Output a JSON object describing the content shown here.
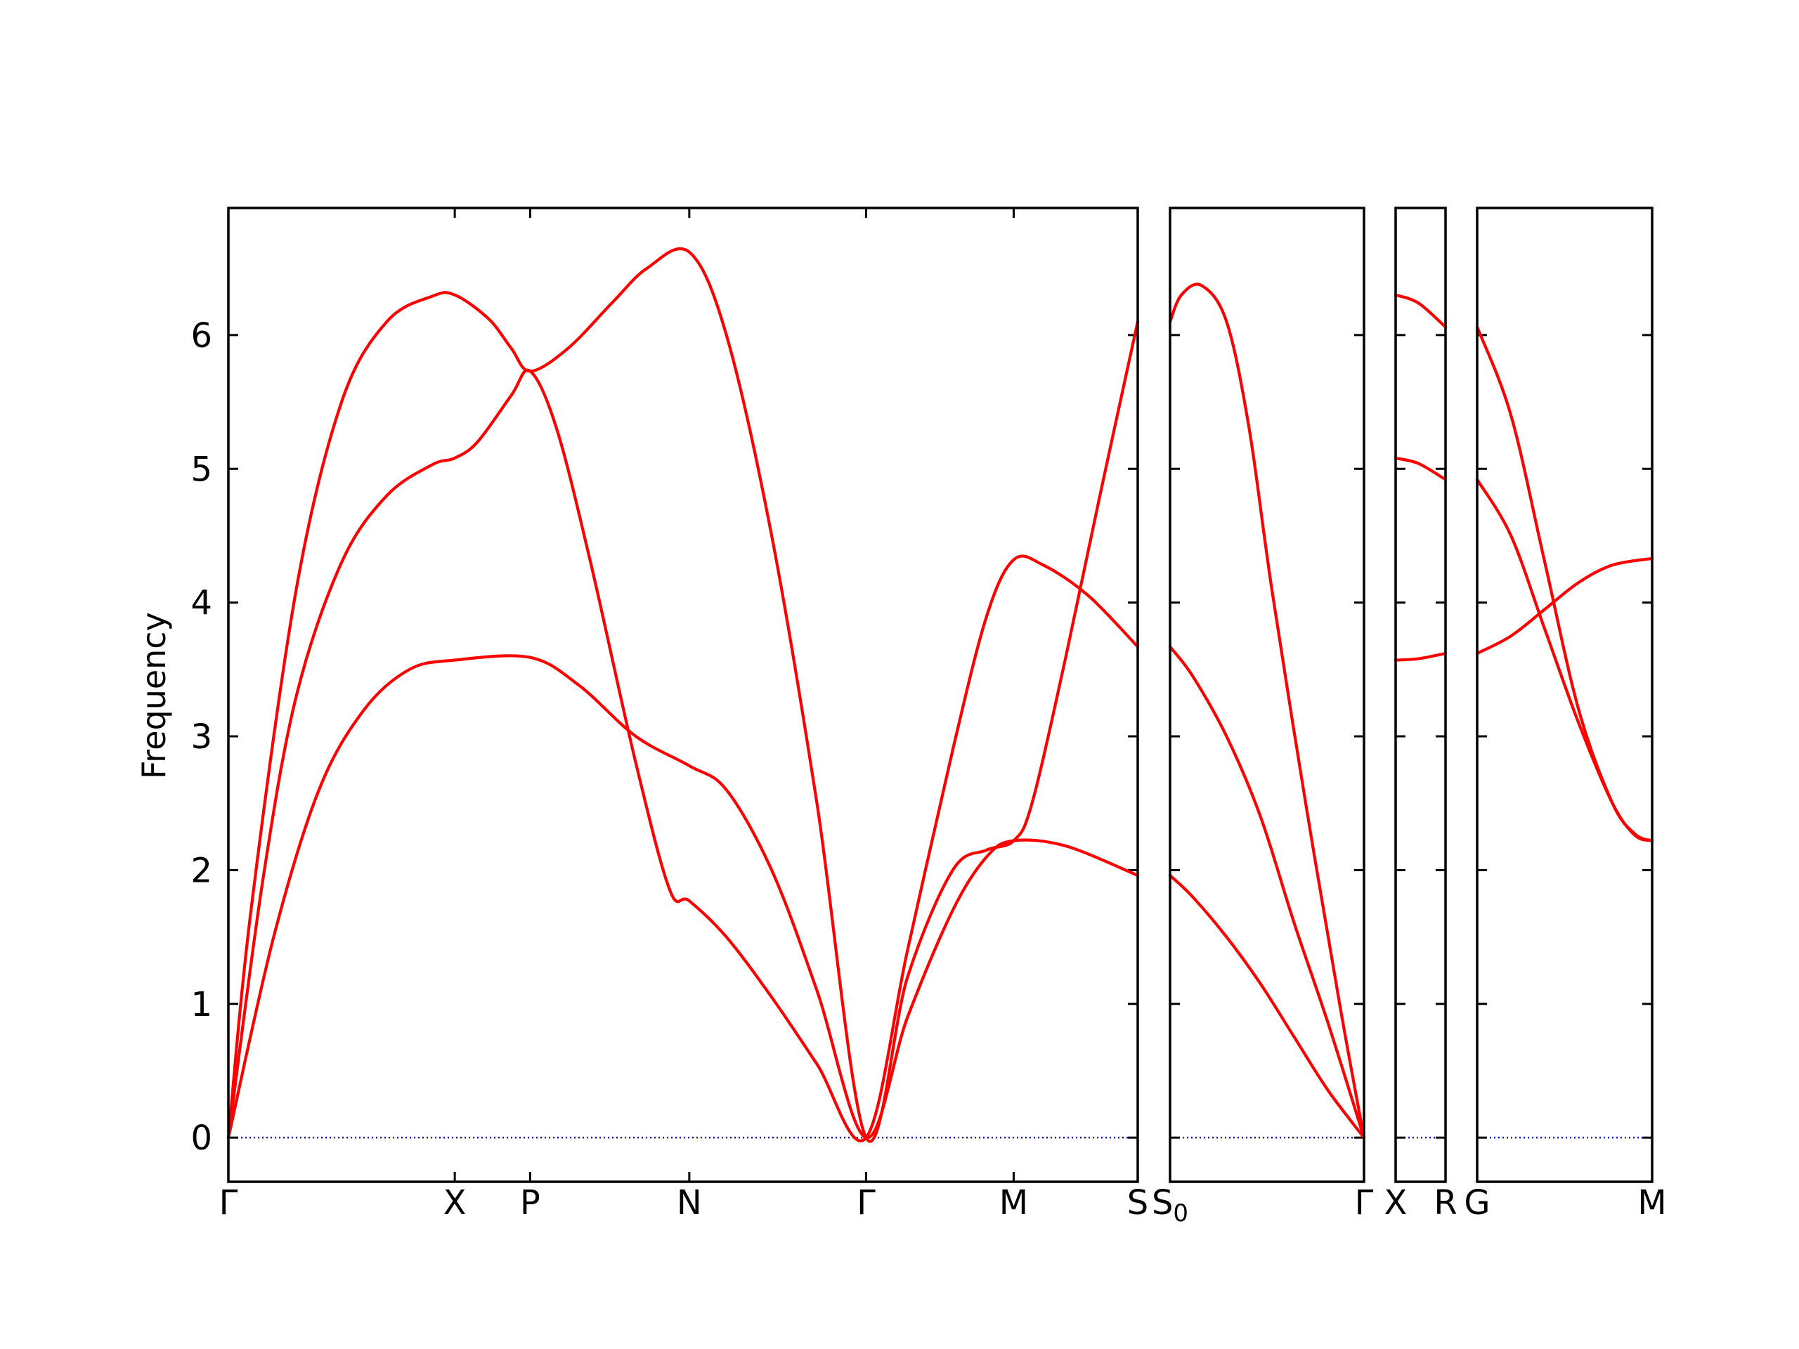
{
  "chart_data": {
    "type": "line",
    "title": "",
    "ylabel": "Frequency",
    "ylim": [
      -0.33,
      6.95
    ],
    "yticks": [
      "0",
      "1",
      "2",
      "3",
      "4",
      "5",
      "6"
    ],
    "grid": false,
    "colors": {
      "bands": "#ff0000",
      "zero_line": "#0000cc",
      "axes": "#000000"
    },
    "panels": [
      {
        "xticks": [
          {
            "label": "Γ",
            "x": 0
          },
          {
            "label": "X",
            "x": 1
          },
          {
            "label": "P",
            "x": 1.333
          },
          {
            "label": "N",
            "x": 2.036
          },
          {
            "label": "Γ",
            "x": 2.817
          },
          {
            "label": "M",
            "x": 3.469
          },
          {
            "label": "S",
            "x": 4.017
          }
        ],
        "bands": [
          {
            "name": "",
            "points": [
              [
                0,
                0
              ],
              [
                0.2,
                1.5
              ],
              [
                0.4,
                2.6
              ],
              [
                0.6,
                3.2
              ],
              [
                0.8,
                3.5
              ],
              [
                1,
                3.57
              ],
              [
                1.333,
                3.59
              ],
              [
                1.55,
                3.38
              ],
              [
                1.8,
                3.0
              ],
              [
                2.036,
                2.78
              ],
              [
                2.2,
                2.6
              ],
              [
                2.4,
                2.0
              ],
              [
                2.6,
                1.1
              ],
              [
                2.817,
                0
              ],
              [
                3.0,
                0.9
              ],
              [
                3.2,
                1.7
              ],
              [
                3.35,
                2.1
              ],
              [
                3.469,
                2.22
              ],
              [
                3.7,
                2.18
              ],
              [
                4.017,
                1.96
              ]
            ]
          },
          {
            "name": "",
            "points": [
              [
                0,
                0
              ],
              [
                0.15,
                1.9
              ],
              [
                0.3,
                3.3
              ],
              [
                0.5,
                4.3
              ],
              [
                0.7,
                4.8
              ],
              [
                0.9,
                5.03
              ],
              [
                1,
                5.08
              ],
              [
                1.1,
                5.2
              ],
              [
                1.25,
                5.55
              ],
              [
                1.333,
                5.73
              ],
              [
                1.45,
                5.3
              ],
              [
                1.6,
                4.3
              ],
              [
                1.8,
                2.8
              ],
              [
                1.95,
                1.85
              ],
              [
                2.036,
                1.77
              ],
              [
                2.2,
                1.5
              ],
              [
                2.4,
                1.05
              ],
              [
                2.6,
                0.55
              ],
              [
                2.817,
                0
              ],
              [
                3.0,
                1.4
              ],
              [
                3.2,
                2.9
              ],
              [
                3.35,
                3.9
              ],
              [
                3.469,
                4.32
              ],
              [
                3.6,
                4.28
              ],
              [
                3.8,
                4.05
              ],
              [
                4.017,
                3.67
              ]
            ]
          },
          {
            "name": "",
            "points": [
              [
                0,
                0
              ],
              [
                0.1,
                1.7
              ],
              [
                0.3,
                4.1
              ],
              [
                0.5,
                5.5
              ],
              [
                0.7,
                6.1
              ],
              [
                0.9,
                6.29
              ],
              [
                1,
                6.3
              ],
              [
                1.15,
                6.12
              ],
              [
                1.25,
                5.9
              ],
              [
                1.333,
                5.73
              ],
              [
                1.5,
                5.9
              ],
              [
                1.7,
                6.25
              ],
              [
                1.85,
                6.5
              ],
              [
                2.036,
                6.62
              ],
              [
                2.2,
                6.0
              ],
              [
                2.4,
                4.5
              ],
              [
                2.6,
                2.5
              ],
              [
                2.817,
                0
              ],
              [
                3.0,
                1.2
              ],
              [
                3.2,
                2.0
              ],
              [
                3.35,
                2.15
              ],
              [
                3.469,
                2.22
              ],
              [
                3.55,
                2.5
              ],
              [
                3.7,
                3.6
              ],
              [
                3.85,
                4.8
              ],
              [
                4.017,
                6.1
              ]
            ]
          }
        ]
      },
      {
        "xticks": [
          {
            "label": "S0",
            "x": 0
          },
          {
            "label": "Γ",
            "x": 0.858
          }
        ],
        "bands": [
          {
            "name": "",
            "points": [
              [
                0,
                1.96
              ],
              [
                0.1,
                1.8
              ],
              [
                0.25,
                1.5
              ],
              [
                0.4,
                1.15
              ],
              [
                0.55,
                0.75
              ],
              [
                0.7,
                0.35
              ],
              [
                0.858,
                0
              ]
            ]
          },
          {
            "name": "",
            "points": [
              [
                0,
                3.67
              ],
              [
                0.1,
                3.45
              ],
              [
                0.25,
                3.0
              ],
              [
                0.4,
                2.4
              ],
              [
                0.55,
                1.6
              ],
              [
                0.7,
                0.85
              ],
              [
                0.858,
                0
              ]
            ]
          },
          {
            "name": "",
            "points": [
              [
                0,
                6.1
              ],
              [
                0.05,
                6.3
              ],
              [
                0.14,
                6.37
              ],
              [
                0.25,
                6.1
              ],
              [
                0.35,
                5.3
              ],
              [
                0.45,
                4.1
              ],
              [
                0.6,
                2.5
              ],
              [
                0.75,
                1.0
              ],
              [
                0.858,
                0
              ]
            ]
          }
        ]
      },
      {
        "xticks": [
          {
            "label": "X",
            "x": 0
          },
          {
            "label": "R",
            "x": 0.22
          }
        ],
        "bands": [
          {
            "name": "",
            "points": [
              [
                0,
                3.57
              ],
              [
                0.1,
                3.58
              ],
              [
                0.22,
                3.62
              ]
            ]
          },
          {
            "name": "",
            "points": [
              [
                0,
                5.08
              ],
              [
                0.1,
                5.04
              ],
              [
                0.22,
                4.92
              ]
            ]
          },
          {
            "name": "",
            "points": [
              [
                0,
                6.3
              ],
              [
                0.1,
                6.24
              ],
              [
                0.22,
                6.06
              ]
            ]
          }
        ]
      },
      {
        "xticks": [
          {
            "label": "G",
            "x": 0
          },
          {
            "label": "M",
            "x": 0.776
          }
        ],
        "bands": [
          {
            "name": "",
            "points": [
              [
                0,
                3.62
              ],
              [
                0.15,
                3.75
              ],
              [
                0.3,
                3.95
              ],
              [
                0.45,
                4.15
              ],
              [
                0.6,
                4.28
              ],
              [
                0.776,
                4.33
              ]
            ]
          },
          {
            "name": "",
            "points": [
              [
                0,
                4.92
              ],
              [
                0.15,
                4.5
              ],
              [
                0.3,
                3.8
              ],
              [
                0.45,
                3.1
              ],
              [
                0.6,
                2.5
              ],
              [
                0.7,
                2.26
              ],
              [
                0.776,
                2.22
              ]
            ]
          },
          {
            "name": "",
            "points": [
              [
                0,
                6.06
              ],
              [
                0.15,
                5.4
              ],
              [
                0.3,
                4.3
              ],
              [
                0.45,
                3.2
              ],
              [
                0.6,
                2.5
              ],
              [
                0.7,
                2.27
              ],
              [
                0.776,
                2.22
              ]
            ]
          }
        ]
      }
    ]
  }
}
